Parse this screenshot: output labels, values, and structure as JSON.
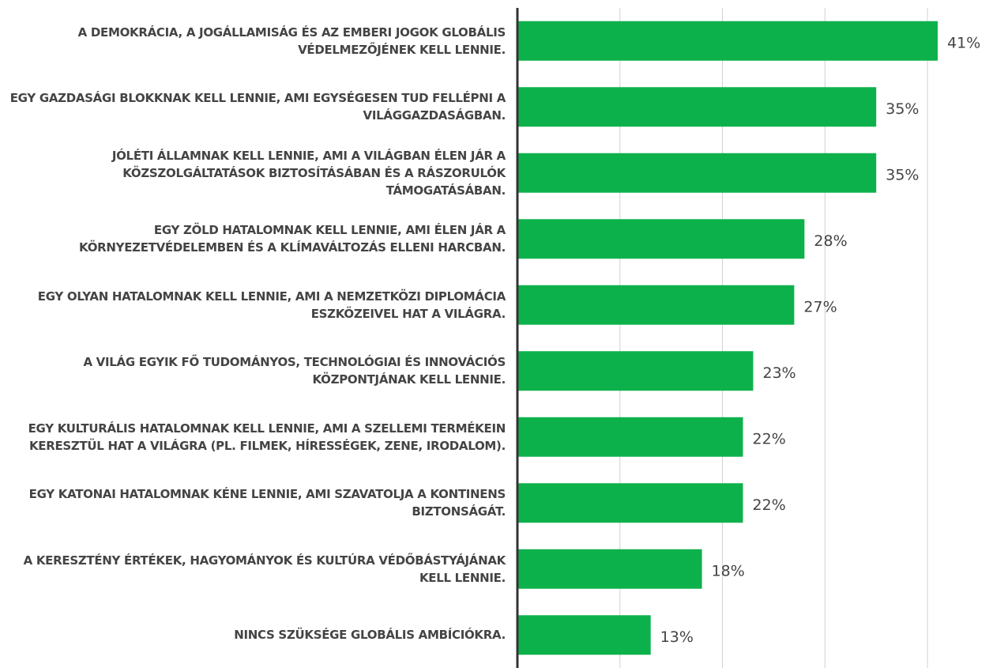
{
  "chart_data": {
    "type": "bar",
    "orientation": "horizontal",
    "categories": [
      "A DEMOKRÁCIA, A JOGÁLLAMISÁG ÉS AZ EMBERI JOGOK GLOBÁLIS VÉDELMEZŐJÉNEK KELL LENNIE.",
      "EGY GAZDASÁGI BLOKKNAK KELL LENNIE, AMI EGYSÉGESEN TUD FELLÉPNI A VILÁGGAZDASÁGBAN.",
      "JÓLÉTI ÁLLAMNAK KELL LENNIE, AMI A VILÁGBAN ÉLEN JÁR A KÖZSZOLGÁLTATÁSOK BIZTOSÍTÁSÁBAN ÉS A RÁSZORULÓK TÁMOGATÁSÁBAN.",
      "EGY ZÖLD HATALOMNAK KELL LENNIE, AMI ÉLEN JÁR A KÖRNYEZETVÉDELEMBEN ÉS A KLÍMAVÁLTOZÁS ELLENI HARCBAN.",
      "EGY OLYAN HATALOMNAK KELL LENNIE, AMI A NEMZETKÖZI DIPLOMÁCIA ESZKÖZEIVEL HAT A VILÁGRA.",
      "A VILÁG EGYIK FŐ TUDOMÁNYOS, TECHNOLÓGIAI ÉS INNOVÁCIÓS KÖZPONTJÁNAK KELL LENNIE.",
      "EGY KULTURÁLIS HATALOMNAK KELL LENNIE, AMI A SZELLEMI TERMÉKEIN KERESZTÜL HAT A VILÁGRA (PL. FILMEK, HÍRESSÉGEK, ZENE, IRODALOM).",
      "EGY KATONAI HATALOMNAK KÉNE LENNIE, AMI SZAVATOLJA A KONTINENS BIZTONSÁGÁT.",
      "A KERESZTÉNY ÉRTÉKEK, HAGYOMÁNYOK ÉS KULTÚRA VÉDŐBÁSTYÁJÁNAK KELL LENNIE.",
      "NINCS SZÜKSÉGE GLOBÁLIS AMBÍCIÓKRA."
    ],
    "values": [
      41,
      35,
      35,
      28,
      27,
      23,
      22,
      22,
      18,
      13
    ],
    "value_labels": [
      "41%",
      "35%",
      "35%",
      "28%",
      "27%",
      "23%",
      "22%",
      "22%",
      "18%",
      "13%"
    ],
    "color": "#0db14b",
    "xlim": [
      0,
      46
    ],
    "xticks": [
      0,
      10,
      20,
      30,
      40
    ],
    "grid": true
  }
}
